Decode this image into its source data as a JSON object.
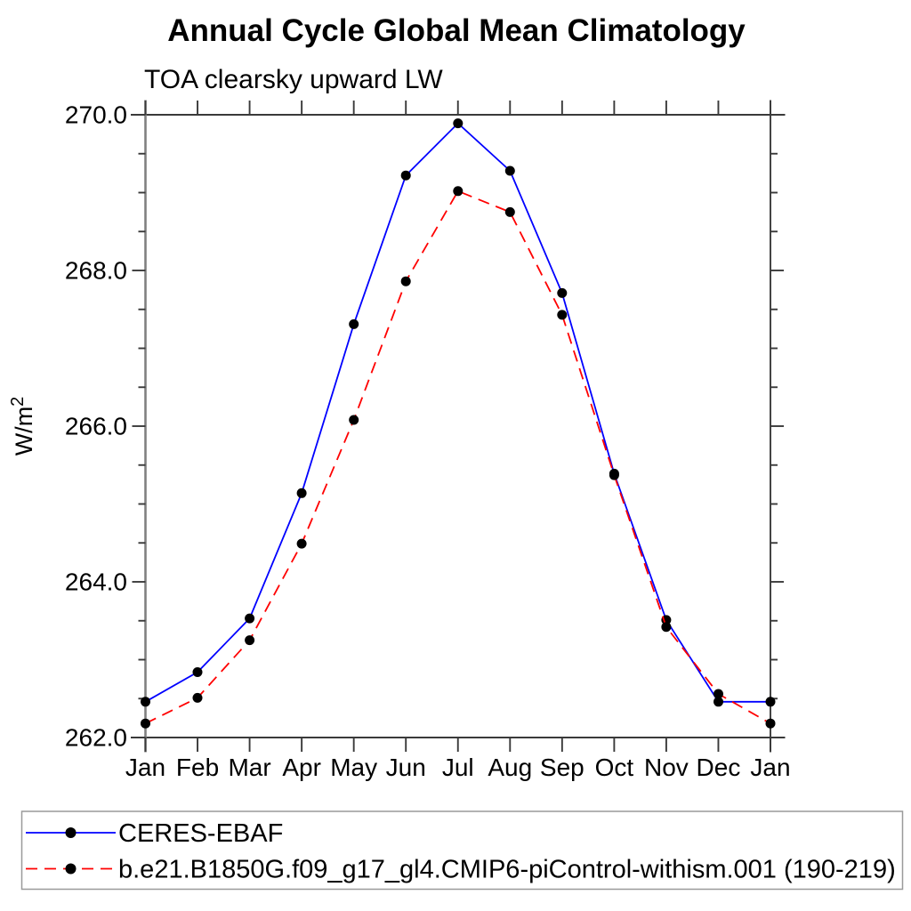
{
  "chart_data": {
    "type": "line",
    "title": "Annual Cycle Global Mean Climatology",
    "subtitle": "TOA clearsky upward LW",
    "xlabel": "",
    "ylabel": "W/m²",
    "x_categories": [
      "Jan",
      "Feb",
      "Mar",
      "Apr",
      "May",
      "Jun",
      "Jul",
      "Aug",
      "Sep",
      "Oct",
      "Nov",
      "Dec",
      "Jan"
    ],
    "ylim": [
      262.0,
      270.0
    ],
    "yticks": {
      "major": [
        262.0,
        264.0,
        266.0,
        268.0,
        270.0
      ],
      "labels": [
        "262.0",
        "264.0",
        "266.0",
        "268.0",
        "270.0"
      ],
      "minor_step": 0.5
    },
    "grid": false,
    "axes_style": "ncl-crossed-corners-mirrored-ticks",
    "marker_color": "#000000",
    "legend": {
      "position": "bottom-box"
    },
    "series": [
      {
        "name": "CERES-EBAF",
        "line_color": "#0000ff",
        "line_style": "solid",
        "marker": "filled-circle",
        "values": [
          262.46,
          262.84,
          263.53,
          265.14,
          267.31,
          269.22,
          269.89,
          269.28,
          267.71,
          265.39,
          263.51,
          262.46,
          262.46
        ]
      },
      {
        "name": "b.e21.B1850G.f09_g17_gl4.CMIP6-piControl-withism.001 (190-219)",
        "line_color": "#ff0000",
        "line_style": "dashed",
        "marker": "filled-circle",
        "values": [
          262.18,
          262.51,
          263.25,
          264.49,
          266.08,
          267.86,
          269.02,
          268.75,
          267.43,
          265.37,
          263.42,
          262.56,
          262.18
        ]
      }
    ]
  }
}
